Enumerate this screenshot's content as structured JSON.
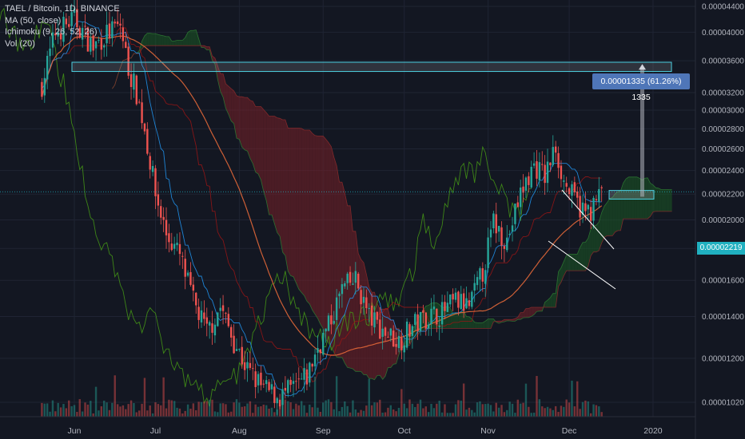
{
  "legend": {
    "title": "TAEL / Bitcoin, 1D, BINANCE",
    "ma": "MA (50, close)",
    "ichimoku": "Ichimoku (9, 26, 52, 26)",
    "vol": "Vol (20)"
  },
  "measure_label": "0.00001335 (61.26%) 1335",
  "price_tag": "0.00002219",
  "colors": {
    "background": "#131722",
    "up": "#26a69a",
    "down": "#ef5350",
    "ma": "#ef6c3a",
    "conversion": "#2196f3",
    "base": "#991515",
    "lagging": "#459915",
    "kumo_bear": "#7a2028",
    "kumo_bull": "#1c5a24",
    "measure": "#4f76b8",
    "price_tag": "#20b0c0"
  },
  "chart_data": {
    "type": "candlestick",
    "title": "TAEL / Bitcoin, 1D, BINANCE",
    "x_ticks": [
      "Jun",
      "Jul",
      "Aug",
      "Sep",
      "Oct",
      "Nov",
      "Dec",
      "2020"
    ],
    "y_ticks": [
      "0.00004400",
      "0.00004000",
      "0.00003600",
      "0.00003200",
      "0.00003000",
      "0.00002800",
      "0.00002600",
      "0.00002400",
      "0.00002200",
      "0.00002000",
      "0.00001800",
      "0.00001600",
      "0.00001400",
      "0.00001200",
      "0.00001020"
    ],
    "y_scale": "log",
    "y_range": [
      9.8e-06,
      4.52e-05
    ],
    "last_price": 2.219e-05,
    "indicators": [
      "MA (50, close)",
      "Ichimoku (9, 26, 52, 26)",
      "Vol (20)"
    ],
    "close_path": [
      {
        "date": "2019-05-20",
        "close": 3.3e-05
      },
      {
        "date": "2019-05-25",
        "close": 4e-05
      },
      {
        "date": "2019-06-01",
        "close": 4.2e-05
      },
      {
        "date": "2019-06-08",
        "close": 3.78e-05
      },
      {
        "date": "2019-06-12",
        "close": 3.95e-05
      },
      {
        "date": "2019-06-18",
        "close": 4.1e-05
      },
      {
        "date": "2019-06-21",
        "close": 3.5e-05
      },
      {
        "date": "2019-06-24",
        "close": 3.2e-05
      },
      {
        "date": "2019-06-27",
        "close": 2.8e-05
      },
      {
        "date": "2019-07-01",
        "close": 2.2e-05
      },
      {
        "date": "2019-07-05",
        "close": 1.9e-05
      },
      {
        "date": "2019-07-10",
        "close": 1.75e-05
      },
      {
        "date": "2019-07-15",
        "close": 1.48e-05
      },
      {
        "date": "2019-07-20",
        "close": 1.32e-05
      },
      {
        "date": "2019-07-25",
        "close": 1.45e-05
      },
      {
        "date": "2019-07-30",
        "close": 1.28e-05
      },
      {
        "date": "2019-08-04",
        "close": 1.15e-05
      },
      {
        "date": "2019-08-10",
        "close": 1.07e-05
      },
      {
        "date": "2019-08-16",
        "close": 1.04e-05
      },
      {
        "date": "2019-08-22",
        "close": 1.08e-05
      },
      {
        "date": "2019-08-26",
        "close": 1.12e-05
      },
      {
        "date": "2019-08-30",
        "close": 1.25e-05
      },
      {
        "date": "2019-09-03",
        "close": 1.35e-05
      },
      {
        "date": "2019-09-08",
        "close": 1.55e-05
      },
      {
        "date": "2019-09-13",
        "close": 1.6e-05
      },
      {
        "date": "2019-09-18",
        "close": 1.4e-05
      },
      {
        "date": "2019-09-24",
        "close": 1.32e-05
      },
      {
        "date": "2019-09-29",
        "close": 1.28e-05
      },
      {
        "date": "2019-10-04",
        "close": 1.35e-05
      },
      {
        "date": "2019-10-09",
        "close": 1.4e-05
      },
      {
        "date": "2019-10-15",
        "close": 1.42e-05
      },
      {
        "date": "2019-10-20",
        "close": 1.48e-05
      },
      {
        "date": "2019-10-25",
        "close": 1.45e-05
      },
      {
        "date": "2019-10-30",
        "close": 1.65e-05
      },
      {
        "date": "2019-11-03",
        "close": 1.98e-05
      },
      {
        "date": "2019-11-08",
        "close": 1.85e-05
      },
      {
        "date": "2019-11-13",
        "close": 2.2e-05
      },
      {
        "date": "2019-11-18",
        "close": 2.45e-05
      },
      {
        "date": "2019-11-22",
        "close": 2.35e-05
      },
      {
        "date": "2019-11-26",
        "close": 2.62e-05
      },
      {
        "date": "2019-11-29",
        "close": 2.3e-05
      },
      {
        "date": "2019-12-03",
        "close": 2.15e-05
      },
      {
        "date": "2019-12-07",
        "close": 2.05e-05
      },
      {
        "date": "2019-12-10",
        "close": 2.1e-05
      },
      {
        "date": "2019-12-13",
        "close": 2.22e-05
      }
    ],
    "measure": {
      "from": 2.179e-05,
      "to": 3.514e-05,
      "change": 1.335e-05,
      "percent": 61.26,
      "label": "0.00001335 (61.26%) 1335"
    },
    "target_zone": {
      "low": 3.46e-05,
      "high": 3.58e-05
    },
    "entry_zone": {
      "low": 2.16e-05,
      "high": 2.23e-05
    }
  }
}
